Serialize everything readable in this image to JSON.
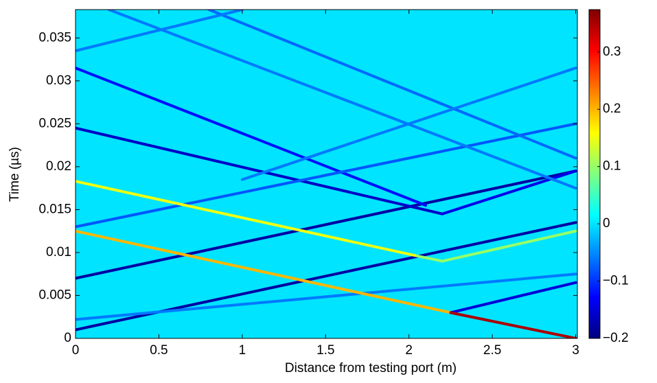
{
  "chart_data": {
    "type": "heatmap",
    "xlabel": "Distance from testing port (m)",
    "ylabel": "Time (µs)",
    "xlim": [
      0,
      3.01
    ],
    "xticks": [
      0,
      0.5,
      1,
      1.5,
      2,
      2.5,
      3
    ],
    "ylim": [
      0,
      0.0383
    ],
    "yticks": [
      0,
      0.005,
      0.01,
      0.015,
      0.02,
      0.025,
      0.03,
      0.035
    ],
    "clim": [
      -0.2,
      0.374
    ],
    "cticks": [
      {
        "value": -0.2,
        "label": "−0.2"
      },
      {
        "value": -0.1,
        "label": "−0.1"
      },
      0,
      0.1,
      0.2,
      0.3
    ],
    "colormap": "jet",
    "background": 0,
    "streaks": [
      {
        "x": [
          0,
          3
        ],
        "y": [
          0.001,
          0.0135
        ],
        "value": -0.18
      },
      {
        "x": [
          0,
          3
        ],
        "y": [
          0.007,
          0.0195
        ],
        "value": -0.18
      },
      {
        "x": [
          0,
          2.2
        ],
        "y": [
          0.0245,
          0.0145
        ],
        "value": -0.16
      },
      {
        "x": [
          2.2,
          3
        ],
        "y": [
          0.0145,
          0.0195
        ],
        "value": -0.14
      },
      {
        "x": [
          0,
          2.1
        ],
        "y": [
          0.0315,
          0.0155
        ],
        "value": -0.12
      },
      {
        "x": [
          2.25,
          3
        ],
        "y": [
          0.003,
          0.0065
        ],
        "value": -0.15
      },
      {
        "x": [
          0,
          3
        ],
        "y": [
          0.013,
          0.025
        ],
        "value": -0.08
      },
      {
        "x": [
          0,
          3
        ],
        "y": [
          0.0022,
          0.0075
        ],
        "value": -0.06
      },
      {
        "x": [
          0.8,
          3
        ],
        "y": [
          0.0383,
          0.021
        ],
        "value": -0.07
      },
      {
        "x": [
          0.2,
          3
        ],
        "y": [
          0.0383,
          0.0175
        ],
        "value": -0.06
      },
      {
        "x": [
          1.0,
          3
        ],
        "y": [
          0.0185,
          0.0315
        ],
        "value": -0.06
      },
      {
        "x": [
          0,
          1.0
        ],
        "y": [
          0.0335,
          0.0383
        ],
        "value": -0.06
      },
      {
        "x": [
          0,
          2.05
        ],
        "y": [
          0.0183,
          0.0096
        ],
        "value": 0.15
      },
      {
        "x": [
          2.05,
          2.2
        ],
        "y": [
          0.0096,
          0.009
        ],
        "value": 0.1
      },
      {
        "x": [
          2.2,
          3
        ],
        "y": [
          0.009,
          0.0125
        ],
        "value": 0.1
      },
      {
        "x": [
          0,
          2.25
        ],
        "y": [
          0.0125,
          0.003
        ],
        "value": 0.2
      },
      {
        "x": [
          2.25,
          3
        ],
        "y": [
          0.003,
          0
        ],
        "value": 0.35
      }
    ]
  }
}
